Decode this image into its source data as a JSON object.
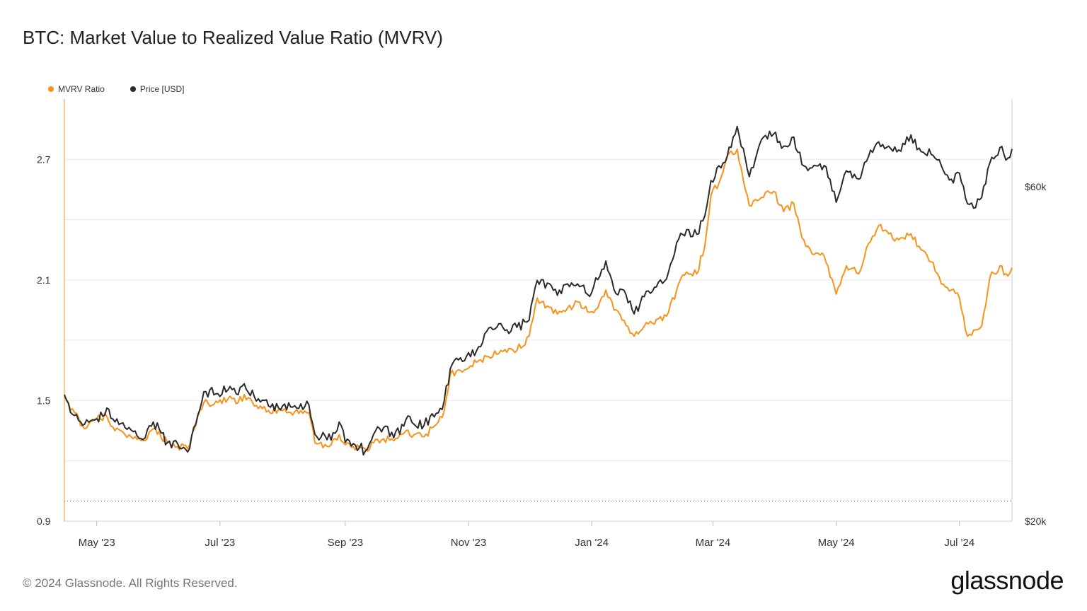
{
  "title": "BTC: Market Value to Realized Value Ratio (MVRV)",
  "footer": "© 2024 Glassnode. All Rights Reserved.",
  "logo_text": "glassnode",
  "colors": {
    "mvrv": "#f7931a",
    "price": "#2b2b2b",
    "grid": "#e9e9e9"
  },
  "chart_data": {
    "type": "line",
    "title": "BTC: Market Value to Realized Value Ratio (MVRV)",
    "x_range": [
      "2023-04-15",
      "2024-07-27"
    ],
    "x_ticks": [
      {
        "date": "2023-05-01",
        "label": "May '23"
      },
      {
        "date": "2023-07-01",
        "label": "Jul '23"
      },
      {
        "date": "2023-09-01",
        "label": "Sep '23"
      },
      {
        "date": "2023-11-01",
        "label": "Nov '23"
      },
      {
        "date": "2024-01-01",
        "label": "Jan '24"
      },
      {
        "date": "2024-03-01",
        "label": "Mar '24"
      },
      {
        "date": "2024-05-01",
        "label": "May '24"
      },
      {
        "date": "2024-07-01",
        "label": "Jul '24"
      }
    ],
    "y_left": {
      "min": 0.9,
      "max": 3.0,
      "ticks": [
        0.9,
        1.5,
        2.1,
        2.7
      ],
      "reference_line": 1.0
    },
    "y_right": {
      "scale": "log",
      "min": 20000,
      "max": 80000,
      "ticks": [
        20000,
        60000
      ],
      "tick_labels": [
        "$20k",
        "$60k"
      ]
    },
    "legend_position": "top-left",
    "grid": true,
    "series": [
      {
        "name": "MVRV Ratio",
        "axis": "left",
        "color": "#f7931a",
        "points": [
          [
            "2023-04-15",
            1.52
          ],
          [
            "2023-04-20",
            1.44
          ],
          [
            "2023-04-25",
            1.36
          ],
          [
            "2023-05-01",
            1.41
          ],
          [
            "2023-05-06",
            1.42
          ],
          [
            "2023-05-10",
            1.35
          ],
          [
            "2023-05-15",
            1.33
          ],
          [
            "2023-05-20",
            1.32
          ],
          [
            "2023-05-25",
            1.3
          ],
          [
            "2023-05-29",
            1.36
          ],
          [
            "2023-06-05",
            1.29
          ],
          [
            "2023-06-10",
            1.27
          ],
          [
            "2023-06-15",
            1.26
          ],
          [
            "2023-06-20",
            1.42
          ],
          [
            "2023-06-23",
            1.49
          ],
          [
            "2023-06-30",
            1.49
          ],
          [
            "2023-07-05",
            1.51
          ],
          [
            "2023-07-10",
            1.49
          ],
          [
            "2023-07-13",
            1.53
          ],
          [
            "2023-07-20",
            1.46
          ],
          [
            "2023-07-25",
            1.45
          ],
          [
            "2023-08-01",
            1.45
          ],
          [
            "2023-08-05",
            1.44
          ],
          [
            "2023-08-10",
            1.45
          ],
          [
            "2023-08-14",
            1.44
          ],
          [
            "2023-08-17",
            1.29
          ],
          [
            "2023-08-25",
            1.28
          ],
          [
            "2023-08-29",
            1.33
          ],
          [
            "2023-09-01",
            1.28
          ],
          [
            "2023-09-05",
            1.27
          ],
          [
            "2023-09-11",
            1.26
          ],
          [
            "2023-09-15",
            1.29
          ],
          [
            "2023-09-20",
            1.31
          ],
          [
            "2023-09-25",
            1.3
          ],
          [
            "2023-10-01",
            1.35
          ],
          [
            "2023-10-05",
            1.33
          ],
          [
            "2023-10-10",
            1.32
          ],
          [
            "2023-10-16",
            1.38
          ],
          [
            "2023-10-20",
            1.45
          ],
          [
            "2023-10-23",
            1.63
          ],
          [
            "2023-10-28",
            1.65
          ],
          [
            "2023-11-05",
            1.69
          ],
          [
            "2023-11-10",
            1.72
          ],
          [
            "2023-11-15",
            1.73
          ],
          [
            "2023-11-20",
            1.74
          ],
          [
            "2023-11-25",
            1.75
          ],
          [
            "2023-12-01",
            1.82
          ],
          [
            "2023-12-05",
            2.01
          ],
          [
            "2023-12-10",
            1.97
          ],
          [
            "2023-12-15",
            1.93
          ],
          [
            "2023-12-20",
            1.96
          ],
          [
            "2023-12-25",
            1.99
          ],
          [
            "2023-12-30",
            1.94
          ],
          [
            "2024-01-04",
            1.96
          ],
          [
            "2024-01-08",
            2.05
          ],
          [
            "2024-01-12",
            1.95
          ],
          [
            "2024-01-17",
            1.9
          ],
          [
            "2024-01-22",
            1.82
          ],
          [
            "2024-01-27",
            1.87
          ],
          [
            "2024-02-01",
            1.88
          ],
          [
            "2024-02-07",
            1.92
          ],
          [
            "2024-02-12",
            2.05
          ],
          [
            "2024-02-17",
            2.14
          ],
          [
            "2024-02-22",
            2.13
          ],
          [
            "2024-02-26",
            2.27
          ],
          [
            "2024-02-29",
            2.52
          ],
          [
            "2024-03-05",
            2.61
          ],
          [
            "2024-03-09",
            2.73
          ],
          [
            "2024-03-13",
            2.75
          ],
          [
            "2024-03-19",
            2.47
          ],
          [
            "2024-03-25",
            2.51
          ],
          [
            "2024-03-31",
            2.54
          ],
          [
            "2024-04-05",
            2.44
          ],
          [
            "2024-04-10",
            2.48
          ],
          [
            "2024-04-14",
            2.31
          ],
          [
            "2024-04-19",
            2.23
          ],
          [
            "2024-04-25",
            2.22
          ],
          [
            "2024-05-01",
            2.03
          ],
          [
            "2024-05-06",
            2.17
          ],
          [
            "2024-05-12",
            2.13
          ],
          [
            "2024-05-16",
            2.26
          ],
          [
            "2024-05-22",
            2.37
          ],
          [
            "2024-05-27",
            2.33
          ],
          [
            "2024-06-01",
            2.3
          ],
          [
            "2024-06-07",
            2.33
          ],
          [
            "2024-06-12",
            2.25
          ],
          [
            "2024-06-17",
            2.19
          ],
          [
            "2024-06-22",
            2.08
          ],
          [
            "2024-06-27",
            2.05
          ],
          [
            "2024-07-01",
            2.01
          ],
          [
            "2024-07-05",
            1.82
          ],
          [
            "2024-07-08",
            1.85
          ],
          [
            "2024-07-12",
            1.87
          ],
          [
            "2024-07-16",
            2.11
          ],
          [
            "2024-07-21",
            2.17
          ],
          [
            "2024-07-25",
            2.12
          ],
          [
            "2024-07-27",
            2.16
          ]
        ]
      },
      {
        "name": "Price [USD]",
        "axis": "right",
        "color": "#2b2b2b",
        "points": [
          [
            "2023-04-15",
            30300
          ],
          [
            "2023-04-20",
            28300
          ],
          [
            "2023-04-25",
            27500
          ],
          [
            "2023-05-01",
            28000
          ],
          [
            "2023-05-06",
            29000
          ],
          [
            "2023-05-10",
            27700
          ],
          [
            "2023-05-15",
            27200
          ],
          [
            "2023-05-20",
            26900
          ],
          [
            "2023-05-25",
            26300
          ],
          [
            "2023-05-29",
            27700
          ],
          [
            "2023-06-05",
            25900
          ],
          [
            "2023-06-10",
            25800
          ],
          [
            "2023-06-15",
            25100
          ],
          [
            "2023-06-20",
            28300
          ],
          [
            "2023-06-23",
            30600
          ],
          [
            "2023-06-30",
            30400
          ],
          [
            "2023-07-05",
            30800
          ],
          [
            "2023-07-10",
            30300
          ],
          [
            "2023-07-13",
            31400
          ],
          [
            "2023-07-20",
            29900
          ],
          [
            "2023-07-25",
            29200
          ],
          [
            "2023-08-01",
            29200
          ],
          [
            "2023-08-05",
            29100
          ],
          [
            "2023-08-10",
            29400
          ],
          [
            "2023-08-14",
            29300
          ],
          [
            "2023-08-17",
            26600
          ],
          [
            "2023-08-25",
            26100
          ],
          [
            "2023-08-29",
            27700
          ],
          [
            "2023-09-01",
            25900
          ],
          [
            "2023-09-05",
            25800
          ],
          [
            "2023-09-11",
            25200
          ],
          [
            "2023-09-15",
            26600
          ],
          [
            "2023-09-20",
            27200
          ],
          [
            "2023-09-25",
            26300
          ],
          [
            "2023-10-01",
            27900
          ],
          [
            "2023-10-05",
            27500
          ],
          [
            "2023-10-10",
            27400
          ],
          [
            "2023-10-16",
            28500
          ],
          [
            "2023-10-20",
            29700
          ],
          [
            "2023-10-23",
            33000
          ],
          [
            "2023-10-28",
            34200
          ],
          [
            "2023-11-05",
            35000
          ],
          [
            "2023-11-10",
            37300
          ],
          [
            "2023-11-15",
            37800
          ],
          [
            "2023-11-20",
            37500
          ],
          [
            "2023-11-25",
            37800
          ],
          [
            "2023-12-01",
            38700
          ],
          [
            "2023-12-05",
            44100
          ],
          [
            "2023-12-10",
            43700
          ],
          [
            "2023-12-15",
            42000
          ],
          [
            "2023-12-20",
            43600
          ],
          [
            "2023-12-25",
            43600
          ],
          [
            "2023-12-30",
            42100
          ],
          [
            "2024-01-04",
            44200
          ],
          [
            "2024-01-08",
            47000
          ],
          [
            "2024-01-12",
            42800
          ],
          [
            "2024-01-17",
            42700
          ],
          [
            "2024-01-22",
            39500
          ],
          [
            "2024-01-27",
            41800
          ],
          [
            "2024-02-01",
            43100
          ],
          [
            "2024-02-07",
            44300
          ],
          [
            "2024-02-12",
            49900
          ],
          [
            "2024-02-17",
            52100
          ],
          [
            "2024-02-22",
            51300
          ],
          [
            "2024-02-26",
            54500
          ],
          [
            "2024-02-29",
            61200
          ],
          [
            "2024-03-05",
            63800
          ],
          [
            "2024-03-09",
            68300
          ],
          [
            "2024-03-13",
            73100
          ],
          [
            "2024-03-19",
            62000
          ],
          [
            "2024-03-25",
            70000
          ],
          [
            "2024-03-31",
            71300
          ],
          [
            "2024-04-05",
            68500
          ],
          [
            "2024-04-10",
            70600
          ],
          [
            "2024-04-14",
            64500
          ],
          [
            "2024-04-19",
            63800
          ],
          [
            "2024-04-25",
            64300
          ],
          [
            "2024-05-01",
            57000
          ],
          [
            "2024-05-06",
            63200
          ],
          [
            "2024-05-12",
            61500
          ],
          [
            "2024-05-16",
            65200
          ],
          [
            "2024-05-22",
            69500
          ],
          [
            "2024-05-27",
            68500
          ],
          [
            "2024-06-01",
            67700
          ],
          [
            "2024-06-07",
            71100
          ],
          [
            "2024-06-12",
            67300
          ],
          [
            "2024-06-17",
            66700
          ],
          [
            "2024-06-22",
            64300
          ],
          [
            "2024-06-27",
            61500
          ],
          [
            "2024-07-01",
            62700
          ],
          [
            "2024-07-05",
            56700
          ],
          [
            "2024-07-08",
            55900
          ],
          [
            "2024-07-12",
            57900
          ],
          [
            "2024-07-16",
            64800
          ],
          [
            "2024-07-21",
            68200
          ],
          [
            "2024-07-25",
            65900
          ],
          [
            "2024-07-27",
            67900
          ]
        ]
      }
    ]
  }
}
